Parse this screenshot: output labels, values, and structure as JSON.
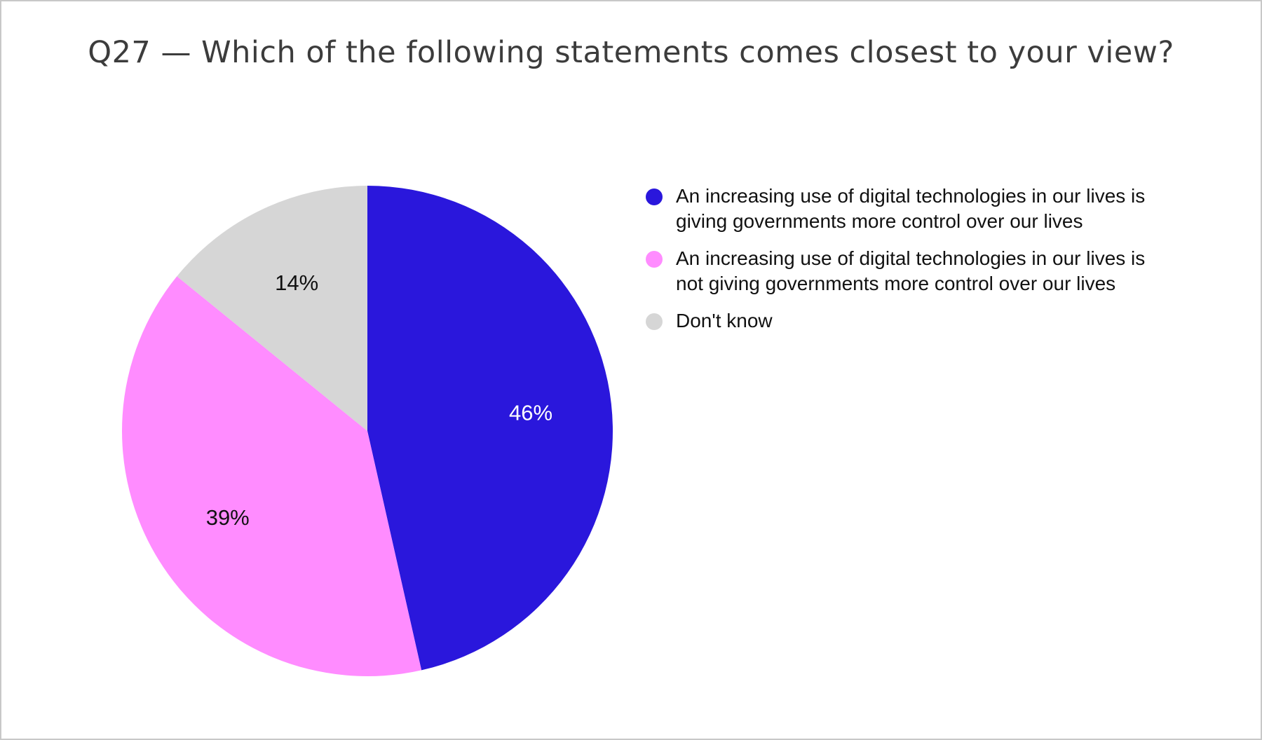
{
  "chart_data": {
    "type": "pie",
    "title": "Q27 — Which of the following statements comes closest to your view?",
    "slices": [
      {
        "label": "An increasing use of digital technologies in our lives is giving governments more control over our lives",
        "value": 46,
        "display": "46%",
        "color": "#2a17dc",
        "label_color": "#ffffff"
      },
      {
        "label": "An increasing use of digital technologies in our lives is not giving governments more control over our lives",
        "value": 39,
        "display": "39%",
        "color": "#ff8cff",
        "label_color": "#111111"
      },
      {
        "label": "Don't know",
        "value": 14,
        "display": "14%",
        "color": "#d6d6d6",
        "label_color": "#111111"
      }
    ],
    "start_angle": "12 o'clock",
    "direction": "clockwise",
    "legend_position": "right"
  }
}
